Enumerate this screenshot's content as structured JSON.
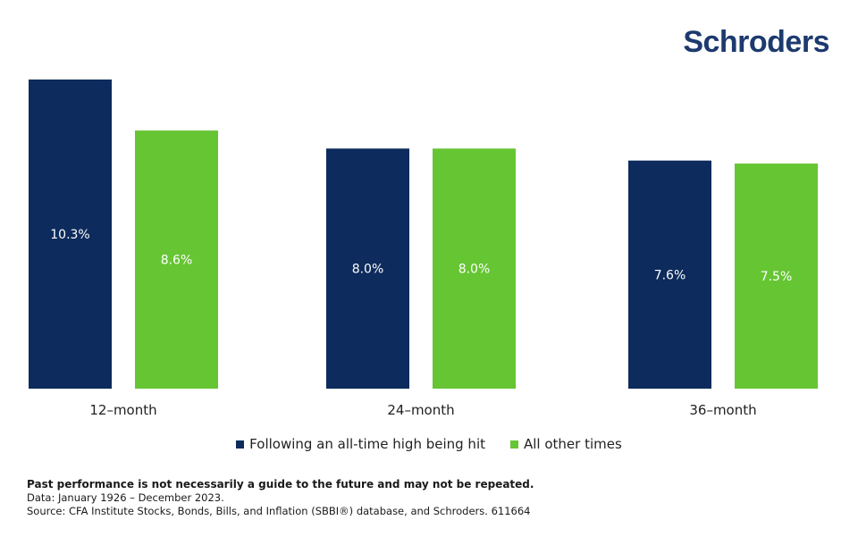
{
  "brand": {
    "logo_text": "Schroders",
    "logo_color": "#1c3a6e"
  },
  "colors": {
    "series1": "#0d2b5c",
    "series2": "#66c533"
  },
  "chart_data": {
    "type": "bar",
    "categories": [
      "12-month",
      "24-month",
      "36-month"
    ],
    "category_labels": [
      "12–month",
      "24–month",
      "36–month"
    ],
    "series": [
      {
        "name": "Following an all-time high being hit",
        "values": [
          10.3,
          8.0,
          7.6
        ],
        "labels": [
          "10.3%",
          "8.0%",
          "7.6%"
        ]
      },
      {
        "name": "All other times",
        "values": [
          8.6,
          8.0,
          7.5
        ],
        "labels": [
          "8.6%",
          "8.0%",
          "7.5%"
        ]
      }
    ],
    "title": "",
    "xlabel": "",
    "ylabel": "",
    "ylim": [
      0,
      10.3
    ],
    "grid": false,
    "legend_position": "bottom-center"
  },
  "footer": {
    "disclaimer": "Past performance is not necessarily a guide to the future and may not be repeated.",
    "data_note": "Data: January 1926 – December 2023.",
    "source": "Source: CFA Institute Stocks, Bonds, Bills, and Inflation (SBBI®) database, and Schroders. 611664"
  }
}
